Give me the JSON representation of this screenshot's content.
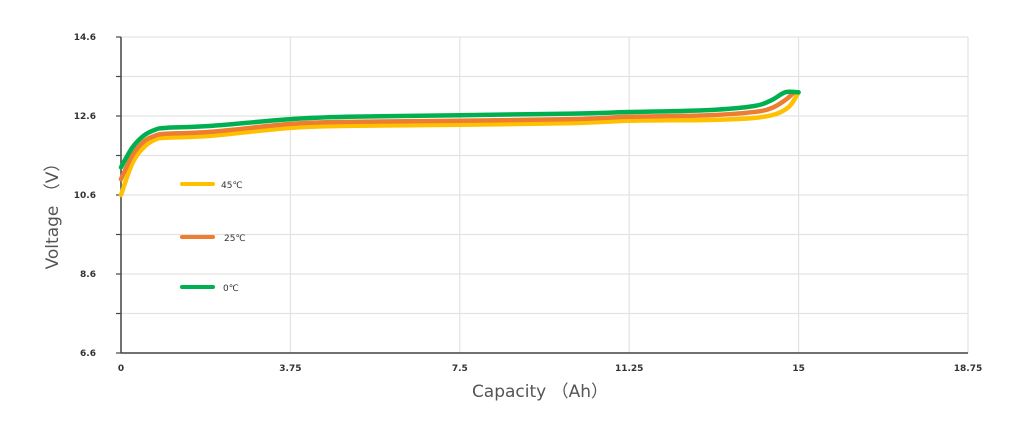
{
  "chart_data": {
    "type": "line",
    "title": "",
    "xlabel": "Capacity （Ah）",
    "ylabel": "Voltage （V）",
    "xlim": [
      0,
      18.75
    ],
    "ylim": [
      6.6,
      14.6
    ],
    "xticks": [
      "0",
      "3.75",
      "7.5",
      "11.25",
      "15",
      "18.75"
    ],
    "yticks": [
      "14.6",
      "12.6",
      "10.6",
      "8.6",
      "6.6"
    ],
    "grid": true,
    "legend_position": "inside-left",
    "series": [
      {
        "name": "45℃",
        "color": "#FFC000",
        "x": [
          0,
          0.25,
          0.5,
          0.75,
          1.0,
          2.0,
          3.75,
          5.0,
          7.5,
          10.0,
          11.25,
          13.0,
          14.0,
          14.5,
          14.8,
          15.0
        ],
        "y": [
          10.6,
          11.4,
          11.8,
          12.0,
          12.05,
          12.1,
          12.3,
          12.35,
          12.38,
          12.42,
          12.48,
          12.5,
          12.55,
          12.65,
          12.85,
          13.2
        ]
      },
      {
        "name": "25℃",
        "color": "#ED7D31",
        "x": [
          0,
          0.25,
          0.5,
          0.75,
          1.0,
          2.0,
          3.75,
          5.0,
          7.5,
          10.0,
          11.25,
          13.0,
          14.0,
          14.4,
          14.7,
          14.9
        ],
        "y": [
          11.0,
          11.6,
          11.95,
          12.1,
          12.15,
          12.2,
          12.4,
          12.45,
          12.48,
          12.52,
          12.58,
          12.62,
          12.7,
          12.8,
          13.0,
          13.2
        ]
      },
      {
        "name": "0℃",
        "color": "#00B050",
        "x": [
          0,
          0.25,
          0.5,
          0.75,
          1.0,
          2.0,
          3.75,
          5.0,
          7.5,
          10.0,
          11.25,
          13.0,
          14.0,
          14.4,
          14.7,
          15.0
        ],
        "y": [
          11.3,
          11.8,
          12.1,
          12.25,
          12.3,
          12.35,
          12.52,
          12.58,
          12.62,
          12.66,
          12.7,
          12.75,
          12.85,
          13.0,
          13.2,
          13.2
        ]
      }
    ]
  }
}
